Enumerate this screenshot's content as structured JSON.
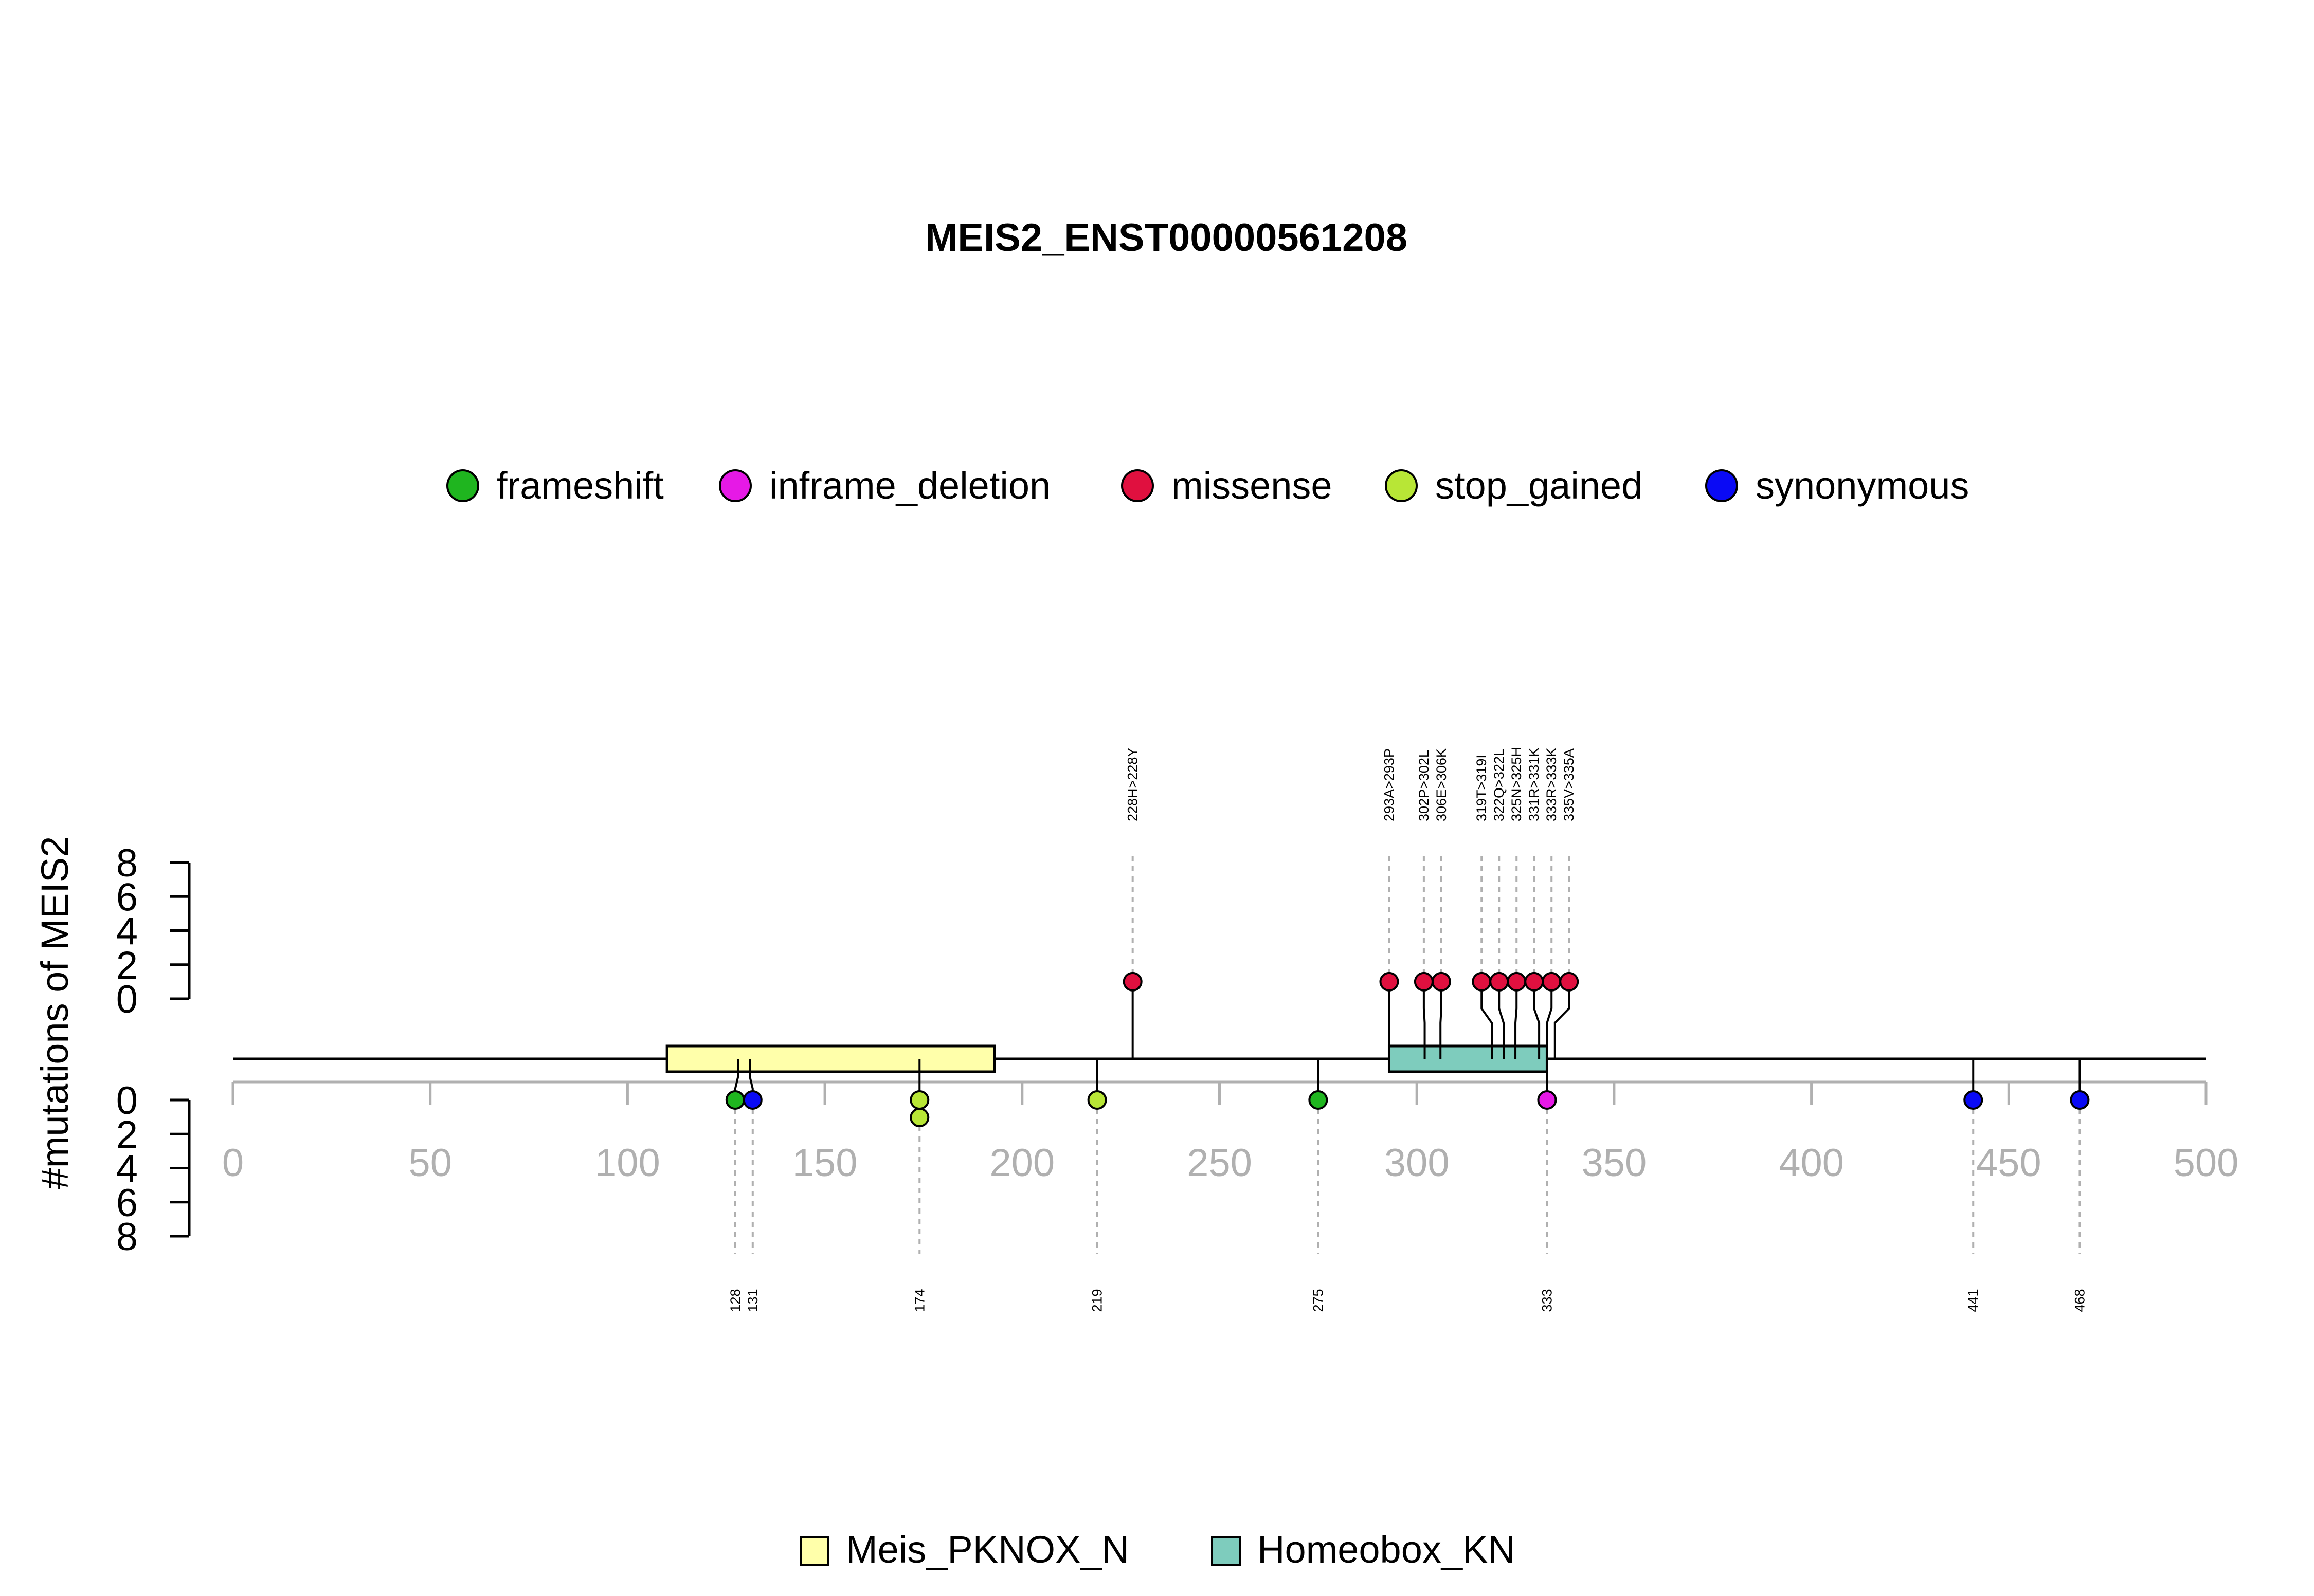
{
  "chart_data": {
    "type": "lollipop",
    "title": "MEIS2_ENST00000561208",
    "ylabel": "#mutations of MEIS2",
    "xlim": [
      0,
      500
    ],
    "x_ticks": [
      "0",
      "50",
      "100",
      "150",
      "200",
      "250",
      "300",
      "350",
      "400",
      "450",
      "500"
    ],
    "y_ticks_top": [
      "0",
      "2",
      "4",
      "6",
      "8"
    ],
    "y_ticks_bottom": [
      "0",
      "2",
      "4",
      "6",
      "8"
    ],
    "ylim": [
      0,
      8
    ],
    "mutation_legend": [
      {
        "label": "frameshift",
        "color": "#1FB51F"
      },
      {
        "label": "inframe_deletion",
        "color": "#E619E6"
      },
      {
        "label": "missense",
        "color": "#E0103F"
      },
      {
        "label": "stop_gained",
        "color": "#B8E636"
      },
      {
        "label": "synonymous",
        "color": "#0A0AF5"
      }
    ],
    "domains": [
      {
        "name": "Meis_PKNOX_N",
        "start": 110,
        "end": 193,
        "color": "#FFFFAA"
      },
      {
        "name": "Homeobox_KN",
        "start": 293,
        "end": 333,
        "color": "#7ECCBD"
      }
    ],
    "upper_mutations": [
      {
        "pos": 228,
        "count": 1,
        "type": "missense",
        "label": "228H>228Y"
      },
      {
        "pos": 293,
        "count": 1,
        "type": "missense",
        "label": "293A>293P"
      },
      {
        "pos": 302,
        "count": 1,
        "type": "missense",
        "label": "302P>302L"
      },
      {
        "pos": 306,
        "count": 1,
        "type": "missense",
        "label": "306E>306K"
      },
      {
        "pos": 319,
        "count": 1,
        "type": "missense",
        "label": "319T>319I"
      },
      {
        "pos": 322,
        "count": 1,
        "type": "missense",
        "label": "322Q>322L"
      },
      {
        "pos": 325,
        "count": 1,
        "type": "missense",
        "label": "325N>325H"
      },
      {
        "pos": 331,
        "count": 1,
        "type": "missense",
        "label": "331R>331K"
      },
      {
        "pos": 333,
        "count": 1,
        "type": "missense",
        "label": "333R>333K"
      },
      {
        "pos": 335,
        "count": 1,
        "type": "missense",
        "label": "335V>335A"
      }
    ],
    "lower_mutations": [
      {
        "pos": 128,
        "type": "frameshift",
        "count": 1,
        "label": "128"
      },
      {
        "pos": 131,
        "type": "synonymous",
        "count": 1,
        "label": "131"
      },
      {
        "pos": 174,
        "type": "stop_gained",
        "count": 2,
        "label": "174"
      },
      {
        "pos": 219,
        "type": "stop_gained",
        "count": 1,
        "label": "219"
      },
      {
        "pos": 275,
        "type": "frameshift",
        "count": 1,
        "label": "275"
      },
      {
        "pos": 333,
        "type": "inframe_deletion",
        "count": 1,
        "label": "333"
      },
      {
        "pos": 441,
        "type": "synonymous",
        "count": 1,
        "label": "441"
      },
      {
        "pos": 468,
        "type": "synonymous",
        "count": 1,
        "label": "468"
      }
    ]
  }
}
